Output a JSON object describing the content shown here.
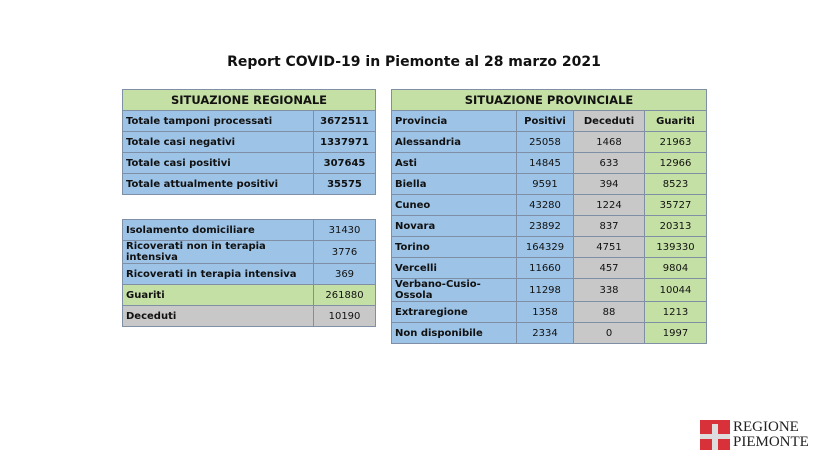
{
  "title": "Report COVID-19 in Piemonte al 28 marzo 2021",
  "regionale": {
    "header": "SITUAZIONE REGIONALE",
    "rows": [
      {
        "label": "Totale tamponi processati",
        "value": "3672511"
      },
      {
        "label": "Totale casi negativi",
        "value": "1337971"
      },
      {
        "label": "Totale casi positivi",
        "value": "307645"
      },
      {
        "label": "Totale attualmente positivi",
        "value": "35575"
      }
    ]
  },
  "dettaglio": {
    "rows": [
      {
        "label": "Isolamento domiciliare",
        "value": "31430"
      },
      {
        "label": "Ricoverati non in terapia intensiva",
        "value": "3776"
      },
      {
        "label": "Ricoverati in terapia intensiva",
        "value": "369"
      },
      {
        "label": "Guariti",
        "value": "261880"
      },
      {
        "label": "Deceduti",
        "value": "10190"
      }
    ]
  },
  "provinciale": {
    "header": "SITUAZIONE PROVINCIALE",
    "columns": [
      "Provincia",
      "Positivi",
      "Deceduti",
      "Guariti"
    ],
    "rows": [
      [
        "Alessandria",
        "25058",
        "1468",
        "21963"
      ],
      [
        "Asti",
        "14845",
        "633",
        "12966"
      ],
      [
        "Biella",
        "9591",
        "394",
        "8523"
      ],
      [
        "Cuneo",
        "43280",
        "1224",
        "35727"
      ],
      [
        "Novara",
        "23892",
        "837",
        "20313"
      ],
      [
        "Torino",
        "164329",
        "4751",
        "139330"
      ],
      [
        "Vercelli",
        "11660",
        "457",
        "9804"
      ],
      [
        "Verbano-Cusio-Ossola",
        "11298",
        "338",
        "10044"
      ],
      [
        "Extraregione",
        "1358",
        "88",
        "1213"
      ],
      [
        "Non disponibile",
        "2334",
        "0",
        "1997"
      ]
    ]
  },
  "logo": {
    "line1": "REGIONE",
    "line2": "PIEMONTE"
  },
  "colors": {
    "blue": "#9dc3e6",
    "green": "#c5e0a5",
    "grey": "#c8c8c8"
  }
}
